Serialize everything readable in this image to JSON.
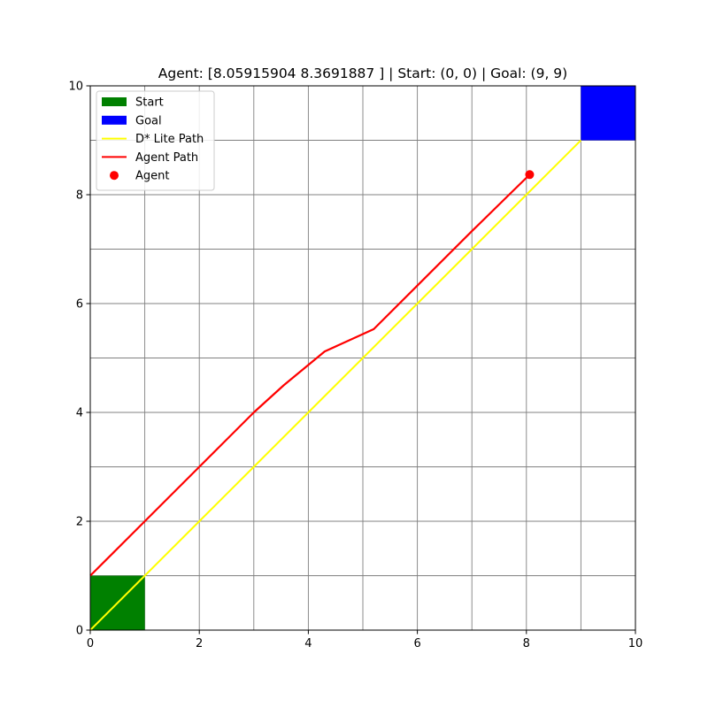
{
  "chart_data": {
    "type": "line",
    "title": "Agent: [8.05915904 8.3691887 ] | Start: (0, 0) | Goal: (9, 9)",
    "xlabel": "",
    "ylabel": "",
    "xlim": [
      0,
      10
    ],
    "ylim": [
      0,
      10
    ],
    "x_ticks": [
      "0",
      "2",
      "4",
      "6",
      "8",
      "10"
    ],
    "y_ticks": [
      "0",
      "2",
      "4",
      "6",
      "8",
      "10"
    ],
    "x_tick_values": [
      0,
      2,
      4,
      6,
      8,
      10
    ],
    "y_tick_values": [
      0,
      2,
      4,
      6,
      8,
      10
    ],
    "grid": true,
    "grid_step": 1,
    "grid_color": "#808080",
    "legend_placement": "top-left",
    "start_cell": {
      "x": 0,
      "y": 0,
      "w": 1,
      "h": 1,
      "color": "#008000"
    },
    "goal_cell": {
      "x": 9,
      "y": 9,
      "w": 1,
      "h": 1,
      "color": "#0000ff"
    },
    "dstar_path": {
      "color": "#ffff00",
      "points": [
        [
          0,
          0
        ],
        [
          1,
          1
        ],
        [
          2,
          2
        ],
        [
          3,
          3
        ],
        [
          4,
          4
        ],
        [
          5,
          5
        ],
        [
          6,
          6
        ],
        [
          7,
          7
        ],
        [
          8,
          8
        ],
        [
          9,
          9
        ]
      ]
    },
    "agent_path": {
      "color": "#ff0000",
      "points": [
        [
          0,
          1
        ],
        [
          1,
          2
        ],
        [
          2,
          3
        ],
        [
          3,
          4
        ],
        [
          3.55,
          4.5
        ],
        [
          4.3,
          5.12
        ],
        [
          5.2,
          5.53
        ],
        [
          6,
          6.33
        ],
        [
          7,
          7.33
        ],
        [
          8.06,
          8.37
        ]
      ]
    },
    "agent": {
      "x": 8.05915904,
      "y": 8.3691887,
      "color": "#ff0000"
    },
    "legend": [
      {
        "label": "Start",
        "kind": "patch",
        "color": "#008000"
      },
      {
        "label": "Goal",
        "kind": "patch",
        "color": "#0000ff"
      },
      {
        "label": "D* Lite Path",
        "kind": "line",
        "color": "#ffff00"
      },
      {
        "label": "Agent Path",
        "kind": "line",
        "color": "#ff0000"
      },
      {
        "label": "Agent",
        "kind": "dot",
        "color": "#ff0000"
      }
    ]
  }
}
